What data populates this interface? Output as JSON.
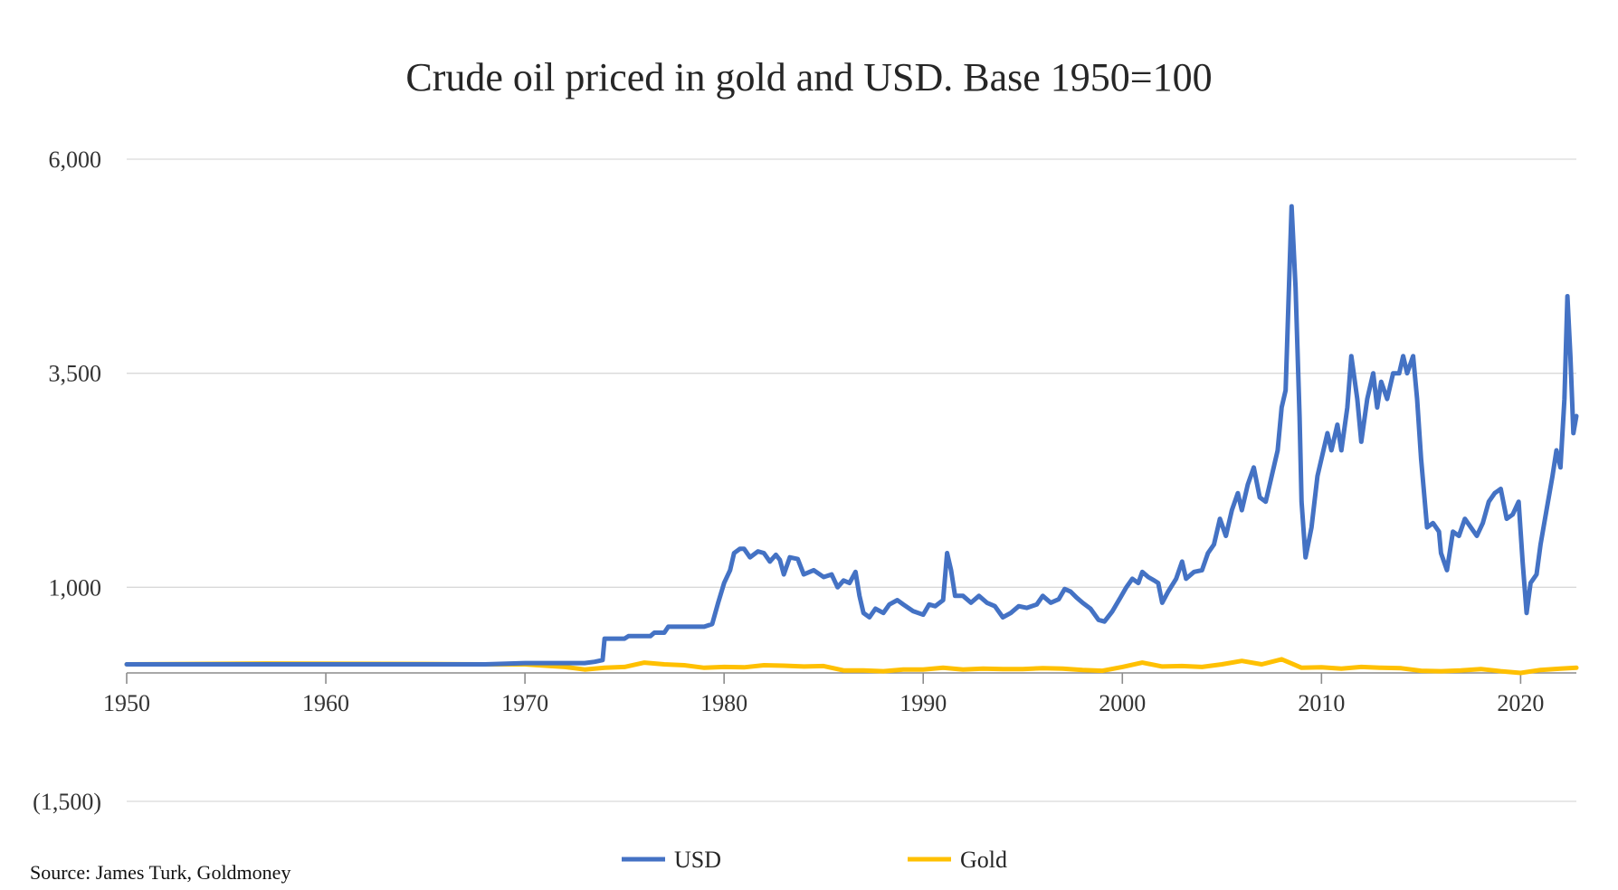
{
  "chart_data": {
    "type": "line",
    "title": "Crude oil priced in gold and USD. Base 1950=100",
    "xlabel": "",
    "ylabel": "",
    "xlim": [
      1950,
      2022.8
    ],
    "ylim": [
      -1500,
      6000
    ],
    "x_ticks": [
      "1950",
      "1960",
      "1970",
      "1980",
      "1990",
      "2000",
      "2010",
      "2020"
    ],
    "y_ticks": [
      {
        "value": 6000,
        "label": "6,000"
      },
      {
        "value": 3500,
        "label": "3,500"
      },
      {
        "value": 1000,
        "label": "1,000"
      },
      {
        "value": -1500,
        "label": "(1,500)"
      }
    ],
    "grid": true,
    "legend_position": "bottom",
    "series": [
      {
        "name": "USD",
        "color": "#4472C4",
        "points": [
          [
            1950,
            100
          ],
          [
            1955,
            100
          ],
          [
            1960,
            100
          ],
          [
            1965,
            100
          ],
          [
            1968,
            100
          ],
          [
            1970,
            115
          ],
          [
            1972,
            115
          ],
          [
            1973,
            115
          ],
          [
            1973.5,
            130
          ],
          [
            1973.9,
            150
          ],
          [
            1974,
            400
          ],
          [
            1975,
            400
          ],
          [
            1975.2,
            430
          ],
          [
            1976.3,
            430
          ],
          [
            1976.5,
            470
          ],
          [
            1977,
            470
          ],
          [
            1977.2,
            540
          ],
          [
            1979,
            540
          ],
          [
            1979.4,
            570
          ],
          [
            1979.7,
            820
          ],
          [
            1980,
            1050
          ],
          [
            1980.3,
            1200
          ],
          [
            1980.5,
            1400
          ],
          [
            1980.8,
            1450
          ],
          [
            1981,
            1450
          ],
          [
            1981.3,
            1350
          ],
          [
            1981.7,
            1420
          ],
          [
            1982,
            1400
          ],
          [
            1982.3,
            1300
          ],
          [
            1982.6,
            1380
          ],
          [
            1982.8,
            1320
          ],
          [
            1983,
            1150
          ],
          [
            1983.3,
            1350
          ],
          [
            1983.7,
            1330
          ],
          [
            1984,
            1150
          ],
          [
            1984.5,
            1200
          ],
          [
            1985,
            1120
          ],
          [
            1985.4,
            1150
          ],
          [
            1985.7,
            1000
          ],
          [
            1986,
            1080
          ],
          [
            1986.3,
            1050
          ],
          [
            1986.6,
            1180
          ],
          [
            1986.8,
            900
          ],
          [
            1987,
            700
          ],
          [
            1987.3,
            650
          ],
          [
            1987.6,
            750
          ],
          [
            1988,
            700
          ],
          [
            1988.3,
            800
          ],
          [
            1988.7,
            850
          ],
          [
            1989,
            800
          ],
          [
            1989.5,
            720
          ],
          [
            1990,
            680
          ],
          [
            1990.3,
            800
          ],
          [
            1990.6,
            780
          ],
          [
            1991,
            850
          ],
          [
            1991.2,
            1400
          ],
          [
            1991.4,
            1200
          ],
          [
            1991.6,
            900
          ],
          [
            1992,
            900
          ],
          [
            1992.4,
            820
          ],
          [
            1992.8,
            900
          ],
          [
            1993.2,
            820
          ],
          [
            1993.6,
            780
          ],
          [
            1994,
            650
          ],
          [
            1994.4,
            700
          ],
          [
            1994.8,
            780
          ],
          [
            1995.2,
            760
          ],
          [
            1995.7,
            800
          ],
          [
            1996,
            900
          ],
          [
            1996.4,
            820
          ],
          [
            1996.8,
            860
          ],
          [
            1997.1,
            980
          ],
          [
            1997.4,
            950
          ],
          [
            1997.7,
            880
          ],
          [
            1998,
            820
          ],
          [
            1998.4,
            750
          ],
          [
            1998.8,
            620
          ],
          [
            1999.1,
            600
          ],
          [
            1999.5,
            720
          ],
          [
            1999.9,
            880
          ],
          [
            2000.2,
            1000
          ],
          [
            2000.5,
            1100
          ],
          [
            2000.8,
            1050
          ],
          [
            2001,
            1180
          ],
          [
            2001.3,
            1120
          ],
          [
            2001.6,
            1080
          ],
          [
            2001.8,
            1050
          ],
          [
            2002,
            820
          ],
          [
            2002.3,
            950
          ],
          [
            2002.7,
            1100
          ],
          [
            2003,
            1300
          ],
          [
            2003.2,
            1100
          ],
          [
            2003.6,
            1180
          ],
          [
            2004,
            1200
          ],
          [
            2004.3,
            1400
          ],
          [
            2004.6,
            1500
          ],
          [
            2004.9,
            1800
          ],
          [
            2005.2,
            1600
          ],
          [
            2005.5,
            1900
          ],
          [
            2005.8,
            2100
          ],
          [
            2006,
            1900
          ],
          [
            2006.3,
            2200
          ],
          [
            2006.6,
            2400
          ],
          [
            2006.9,
            2050
          ],
          [
            2007.2,
            2000
          ],
          [
            2007.5,
            2300
          ],
          [
            2007.8,
            2600
          ],
          [
            2008,
            3100
          ],
          [
            2008.2,
            3300
          ],
          [
            2008.5,
            5450
          ],
          [
            2008.7,
            4500
          ],
          [
            2008.9,
            3000
          ],
          [
            2009,
            2000
          ],
          [
            2009.2,
            1350
          ],
          [
            2009.5,
            1700
          ],
          [
            2009.8,
            2300
          ],
          [
            2010,
            2500
          ],
          [
            2010.3,
            2800
          ],
          [
            2010.5,
            2600
          ],
          [
            2010.8,
            2900
          ],
          [
            2011,
            2600
          ],
          [
            2011.3,
            3100
          ],
          [
            2011.5,
            3700
          ],
          [
            2011.8,
            3200
          ],
          [
            2012,
            2700
          ],
          [
            2012.3,
            3200
          ],
          [
            2012.6,
            3500
          ],
          [
            2012.8,
            3100
          ],
          [
            2013,
            3400
          ],
          [
            2013.3,
            3200
          ],
          [
            2013.6,
            3500
          ],
          [
            2013.9,
            3500
          ],
          [
            2014.1,
            3700
          ],
          [
            2014.3,
            3500
          ],
          [
            2014.6,
            3700
          ],
          [
            2014.8,
            3200
          ],
          [
            2015,
            2500
          ],
          [
            2015.3,
            1700
          ],
          [
            2015.6,
            1750
          ],
          [
            2015.9,
            1650
          ],
          [
            2016,
            1400
          ],
          [
            2016.3,
            1200
          ],
          [
            2016.6,
            1650
          ],
          [
            2016.9,
            1600
          ],
          [
            2017.2,
            1800
          ],
          [
            2017.5,
            1700
          ],
          [
            2017.8,
            1600
          ],
          [
            2018.1,
            1750
          ],
          [
            2018.4,
            2000
          ],
          [
            2018.7,
            2100
          ],
          [
            2019,
            2150
          ],
          [
            2019.3,
            1800
          ],
          [
            2019.6,
            1850
          ],
          [
            2019.9,
            2000
          ],
          [
            2020.1,
            1300
          ],
          [
            2020.3,
            700
          ],
          [
            2020.5,
            1050
          ],
          [
            2020.8,
            1150
          ],
          [
            2021,
            1500
          ],
          [
            2021.3,
            1900
          ],
          [
            2021.6,
            2300
          ],
          [
            2021.8,
            2600
          ],
          [
            2022,
            2400
          ],
          [
            2022.2,
            3200
          ],
          [
            2022.35,
            4400
          ],
          [
            2022.5,
            3700
          ],
          [
            2022.65,
            2800
          ],
          [
            2022.8,
            3000
          ]
        ]
      },
      {
        "name": "Gold",
        "color": "#FFC000",
        "points": [
          [
            1950,
            100
          ],
          [
            1957,
            110
          ],
          [
            1965,
            105
          ],
          [
            1968,
            100
          ],
          [
            1970,
            100
          ],
          [
            1972,
            70
          ],
          [
            1973,
            40
          ],
          [
            1974,
            60
          ],
          [
            1975,
            70
          ],
          [
            1976,
            120
          ],
          [
            1977,
            100
          ],
          [
            1978,
            90
          ],
          [
            1979,
            60
          ],
          [
            1980,
            70
          ],
          [
            1981,
            65
          ],
          [
            1982,
            90
          ],
          [
            1983,
            85
          ],
          [
            1984,
            75
          ],
          [
            1985,
            80
          ],
          [
            1986,
            30
          ],
          [
            1987,
            30
          ],
          [
            1988,
            20
          ],
          [
            1989,
            40
          ],
          [
            1990,
            40
          ],
          [
            1991,
            60
          ],
          [
            1992,
            40
          ],
          [
            1993,
            50
          ],
          [
            1994,
            45
          ],
          [
            1995,
            45
          ],
          [
            1996,
            55
          ],
          [
            1997,
            50
          ],
          [
            1998,
            35
          ],
          [
            1999,
            25
          ],
          [
            2000,
            70
          ],
          [
            2001,
            120
          ],
          [
            2002,
            75
          ],
          [
            2003,
            80
          ],
          [
            2004,
            70
          ],
          [
            2005,
            100
          ],
          [
            2006,
            140
          ],
          [
            2007,
            100
          ],
          [
            2008,
            160
          ],
          [
            2008.5,
            110
          ],
          [
            2009,
            60
          ],
          [
            2010,
            65
          ],
          [
            2011,
            50
          ],
          [
            2012,
            70
          ],
          [
            2013,
            60
          ],
          [
            2014,
            55
          ],
          [
            2015,
            25
          ],
          [
            2016,
            20
          ],
          [
            2017,
            30
          ],
          [
            2018,
            45
          ],
          [
            2019,
            20
          ],
          [
            2020,
            0
          ],
          [
            2021,
            35
          ],
          [
            2022,
            50
          ],
          [
            2022.8,
            60
          ]
        ]
      }
    ]
  },
  "source": "Source: James Turk, Goldmoney"
}
